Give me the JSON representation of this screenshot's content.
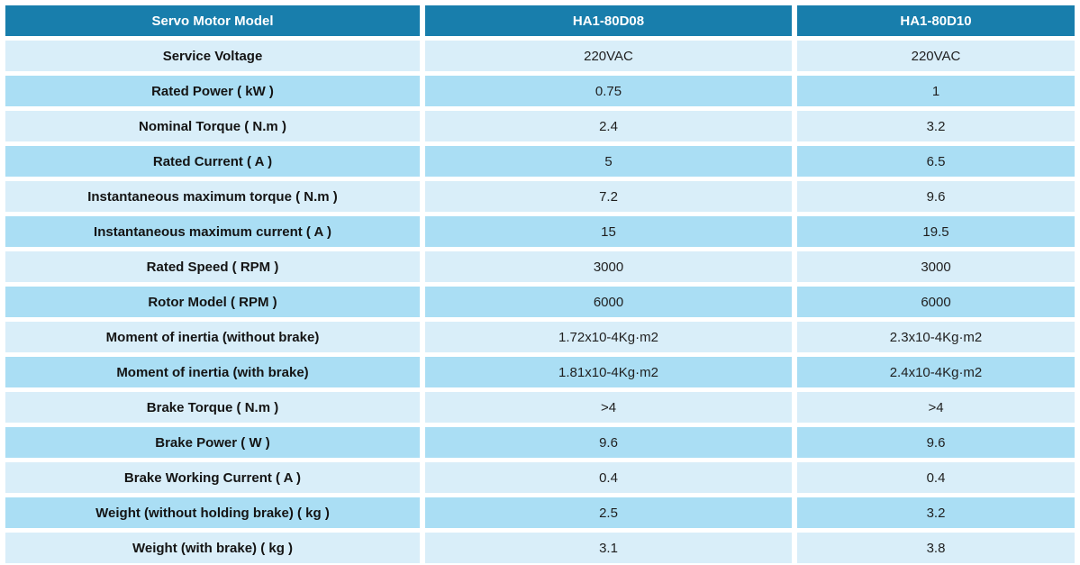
{
  "page": {
    "background": "#ffffff"
  },
  "colors": {
    "header_bg": "#187EAC",
    "header_text": "#ffffff",
    "row_light": "#D9EEF9",
    "row_dark": "#AADEF4",
    "label_text": "#141414",
    "value_text": "#1f1f1f"
  },
  "table": {
    "columns": [
      "Servo Motor Model",
      "HA1-80D08",
      "HA1-80D10"
    ],
    "rows": [
      {
        "label": "Service Voltage",
        "values": [
          "220VAC",
          "220VAC"
        ]
      },
      {
        "label": "Rated Power ( kW )",
        "values": [
          "0.75",
          "1"
        ]
      },
      {
        "label": "Nominal Torque ( N.m )",
        "values": [
          "2.4",
          "3.2"
        ]
      },
      {
        "label": "Rated Current ( A )",
        "values": [
          "5",
          "6.5"
        ]
      },
      {
        "label": "Instantaneous maximum torque ( N.m )",
        "values": [
          "7.2",
          "9.6"
        ]
      },
      {
        "label": "Instantaneous maximum current ( A )",
        "values": [
          "15",
          "19.5"
        ]
      },
      {
        "label": "Rated Speed ( RPM )",
        "values": [
          "3000",
          "3000"
        ]
      },
      {
        "label": "Rotor Model  ( RPM )",
        "values": [
          "6000",
          "6000"
        ]
      },
      {
        "label": "Moment of inertia (without brake)",
        "values": [
          "1.72x10-4Kg·m2",
          "2.3x10-4Kg·m2"
        ]
      },
      {
        "label": "Moment of inertia (with brake)",
        "values": [
          "1.81x10-4Kg·m2",
          "2.4x10-4Kg·m2"
        ]
      },
      {
        "label": "Brake Torque (  N.m )",
        "values": [
          ">4",
          ">4"
        ]
      },
      {
        "label": "Brake Power ( W )",
        "values": [
          "9.6",
          "9.6"
        ]
      },
      {
        "label": "Brake Working Current ( A )",
        "values": [
          "0.4",
          "0.4"
        ]
      },
      {
        "label": "Weight (without holding brake) ( kg )",
        "values": [
          "2.5",
          "3.2"
        ]
      },
      {
        "label": "Weight (with brake) ( kg )",
        "values": [
          "3.1",
          "3.8"
        ]
      }
    ]
  }
}
